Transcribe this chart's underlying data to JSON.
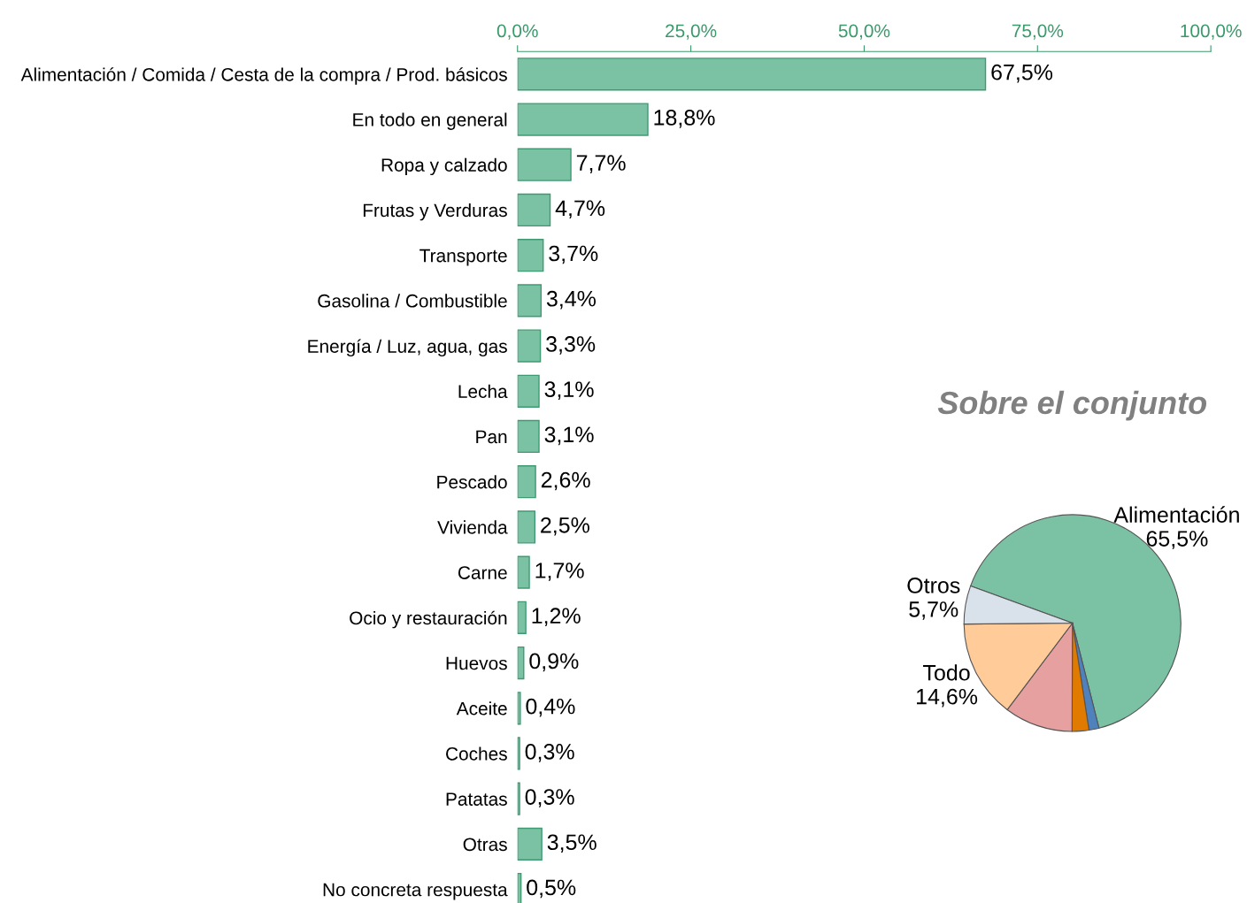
{
  "chart_data": [
    {
      "type": "bar",
      "orientation": "horizontal",
      "categories": [
        "Alimentación / Comida / Cesta de la compra / Prod. básicos",
        "En todo en general",
        "Ropa y calzado",
        "Frutas y Verduras",
        "Transporte",
        "Gasolina / Combustible",
        "Energía / Luz, agua, gas",
        "Lecha",
        "Pan",
        "Pescado",
        "Vivienda",
        "Carne",
        "Ocio y restauración",
        "Huevos",
        "Aceite",
        "Coches",
        "Patatas",
        "Otras",
        "No concreta respuesta"
      ],
      "values": [
        67.5,
        18.8,
        7.7,
        4.7,
        3.7,
        3.4,
        3.3,
        3.1,
        3.1,
        2.6,
        2.5,
        1.7,
        1.2,
        0.9,
        0.4,
        0.3,
        0.3,
        3.5,
        0.5
      ],
      "value_labels": [
        "67,5%",
        "18,8%",
        "7,7%",
        "4,7%",
        "3,7%",
        "3,4%",
        "3,3%",
        "3,1%",
        "3,1%",
        "2,6%",
        "2,5%",
        "1,7%",
        "1,2%",
        "0,9%",
        "0,4%",
        "0,3%",
        "0,3%",
        "3,5%",
        "0,5%"
      ],
      "color": "#7bc2a5",
      "xlim": [
        0,
        100
      ],
      "xticks": [
        {
          "value": 0,
          "label": "0,0%"
        },
        {
          "value": 25,
          "label": "25,0%"
        },
        {
          "value": 50,
          "label": "50,0%"
        },
        {
          "value": 75,
          "label": "75,0%"
        },
        {
          "value": 100,
          "label": "100,0%"
        }
      ],
      "grid": false,
      "legend": false
    },
    {
      "type": "pie",
      "title": "Sobre el conjunto",
      "categories": [
        "Alimentación",
        null,
        null,
        null,
        "Todo",
        "Otros"
      ],
      "values": [
        65.5,
        1.5,
        2.5,
        10.2,
        14.6,
        5.7
      ],
      "value_labels": [
        "65,5%",
        null,
        null,
        null,
        "14,6%",
        "5,7%"
      ],
      "colors": [
        "#7bc2a5",
        "#4f81bd",
        "#e07b00",
        "#e6a0a0",
        "#ffcc99",
        "#d9e1ea"
      ],
      "legend": false
    }
  ]
}
